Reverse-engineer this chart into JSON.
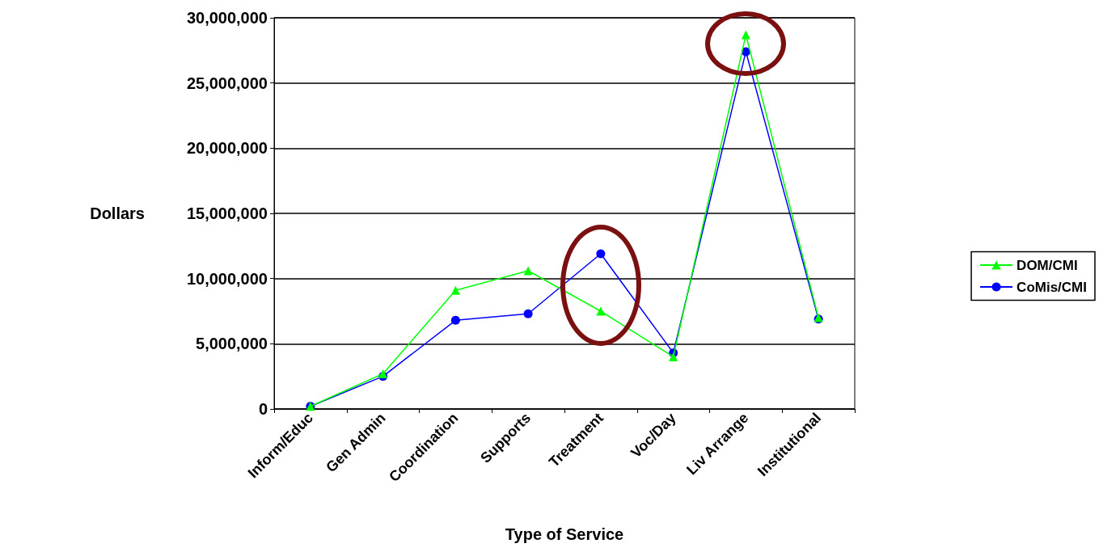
{
  "chart_data": {
    "type": "line",
    "xlabel": "Type of Service",
    "ylabel": "Dollars",
    "categories": [
      "Inform/Educ",
      "Gen Admin",
      "Coordination",
      "Supports",
      "Treatment",
      "Voc/Day",
      "Liv Arrange",
      "Institutional"
    ],
    "series": [
      {
        "name": "DOM/CMI",
        "color": "#00ff00",
        "marker": "triangle",
        "values": [
          200000,
          2700000,
          9100000,
          10600000,
          7500000,
          4000000,
          28700000,
          7000000
        ]
      },
      {
        "name": "CoMis/CMI",
        "color": "#0000ff",
        "marker": "circle",
        "values": [
          200000,
          2500000,
          6800000,
          7300000,
          11900000,
          4300000,
          27400000,
          6900000
        ]
      }
    ],
    "ylim": [
      0,
      30000000
    ],
    "yticks": [
      0,
      {
        "value": 5000000,
        "label": "5,000,000"
      },
      {
        "value": 10000000,
        "label": "10,000,000"
      },
      {
        "value": 15000000,
        "label": "15,000,000"
      },
      {
        "value": 20000000,
        "label": "20,000,000"
      },
      {
        "value": 25000000,
        "label": "25,000,000"
      },
      {
        "value": 30000000,
        "label": "30,000,000"
      }
    ],
    "grid": "y",
    "legend": "right",
    "line_style": "solid"
  }
}
